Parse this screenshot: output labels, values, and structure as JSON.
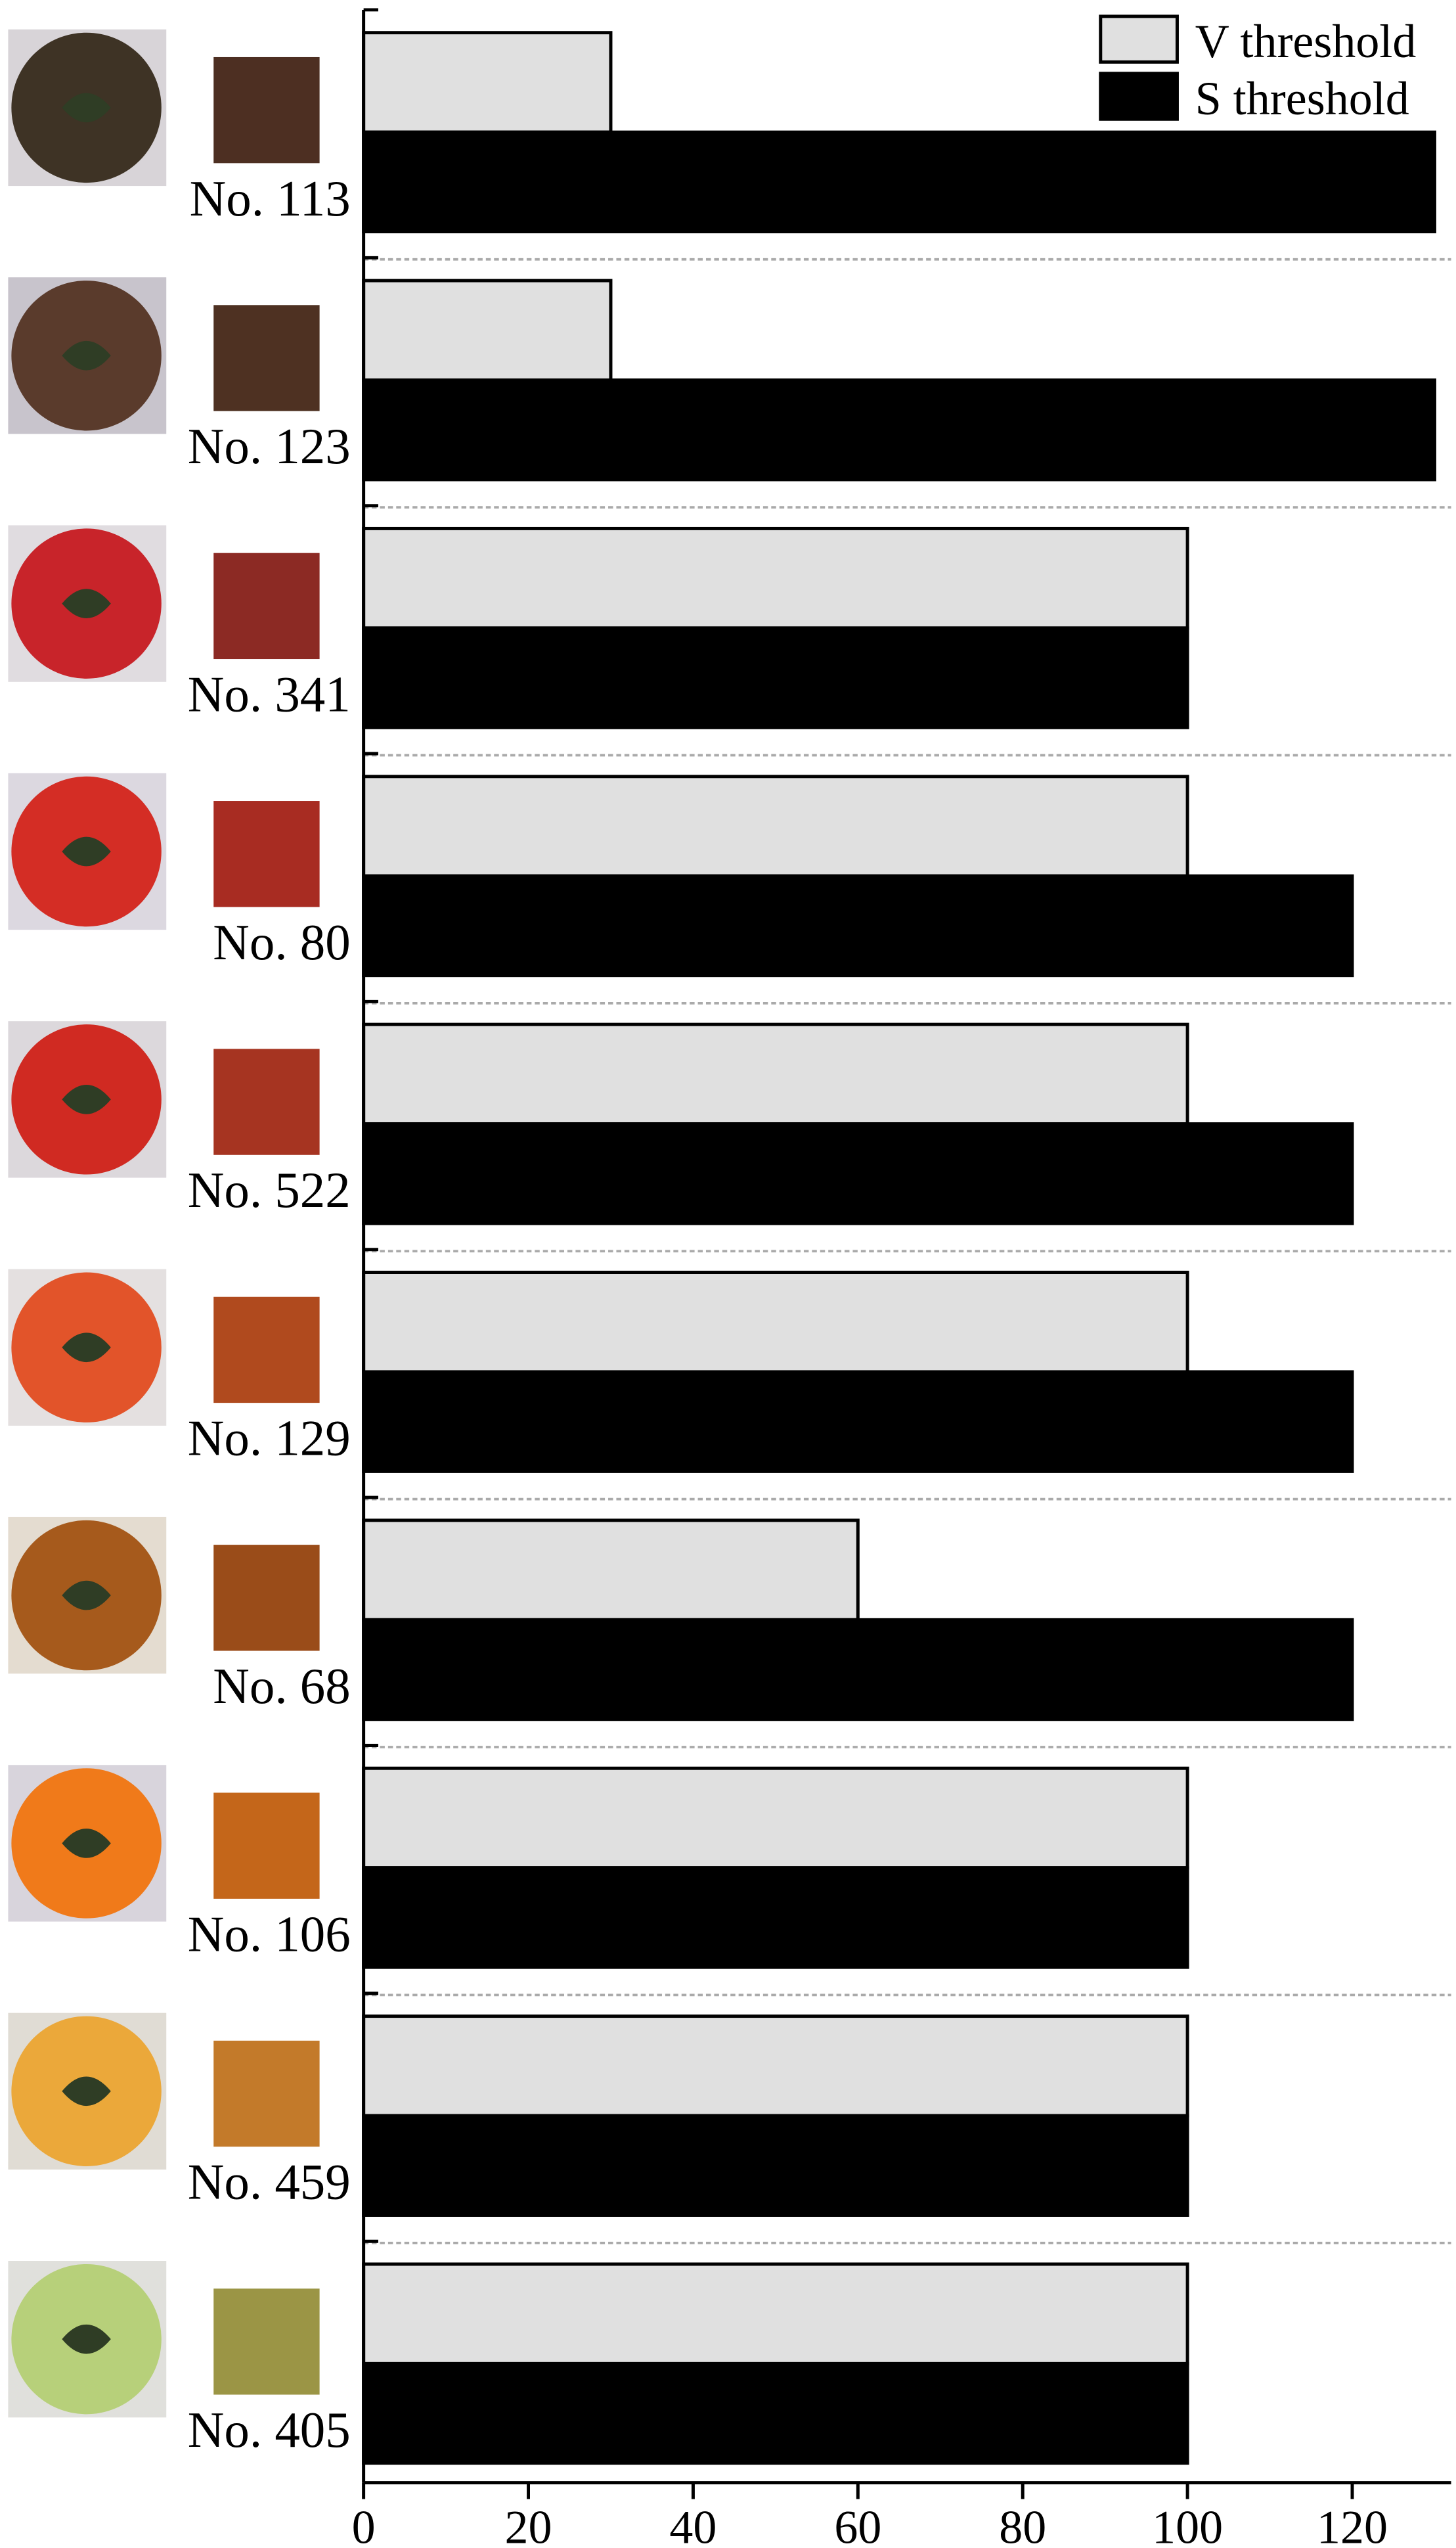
{
  "chart_data": {
    "type": "barh",
    "categories": [
      "No. 113",
      "No. 123",
      "No. 341",
      "No. 80",
      "No. 522",
      "No. 129",
      "No. 68",
      "No. 106",
      "No. 459",
      "No. 405"
    ],
    "series": [
      {
        "name": "V threshold",
        "color": "#e0e0e0",
        "values": [
          30,
          30,
          100,
          100,
          100,
          100,
          60,
          100,
          100,
          100
        ]
      },
      {
        "name": "S threshold",
        "color": "#000000",
        "values": [
          130,
          130,
          100,
          120,
          120,
          120,
          120,
          100,
          100,
          100
        ]
      }
    ],
    "xlim": [
      0,
      132
    ],
    "xticks": [
      0,
      20,
      40,
      60,
      80,
      100,
      120
    ],
    "legend": "top-right"
  }
}
